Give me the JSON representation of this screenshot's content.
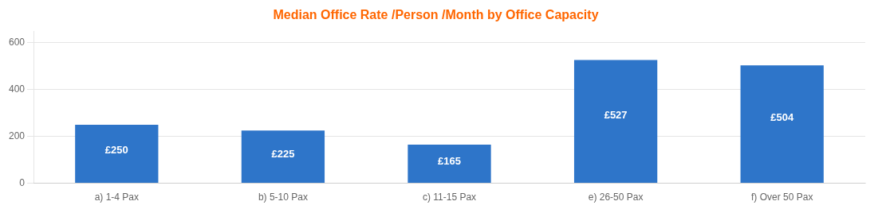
{
  "chart_data": {
    "type": "bar",
    "title": "Median Office Rate /Person /Month by Office Capacity",
    "categories": [
      "a) 1-4 Pax",
      "b) 5-10 Pax",
      "c) 11-15 Pax",
      "e) 26-50 Pax",
      "f) Over 50 Pax"
    ],
    "values": [
      250,
      225,
      165,
      527,
      504
    ],
    "value_labels": [
      "£250",
      "£225",
      "£165",
      "£527",
      "£504"
    ],
    "data_labels": true,
    "color": "#2E75C9",
    "ylim": [
      0,
      650
    ],
    "yticks": [
      0,
      200,
      400,
      600
    ],
    "grid": true
  }
}
